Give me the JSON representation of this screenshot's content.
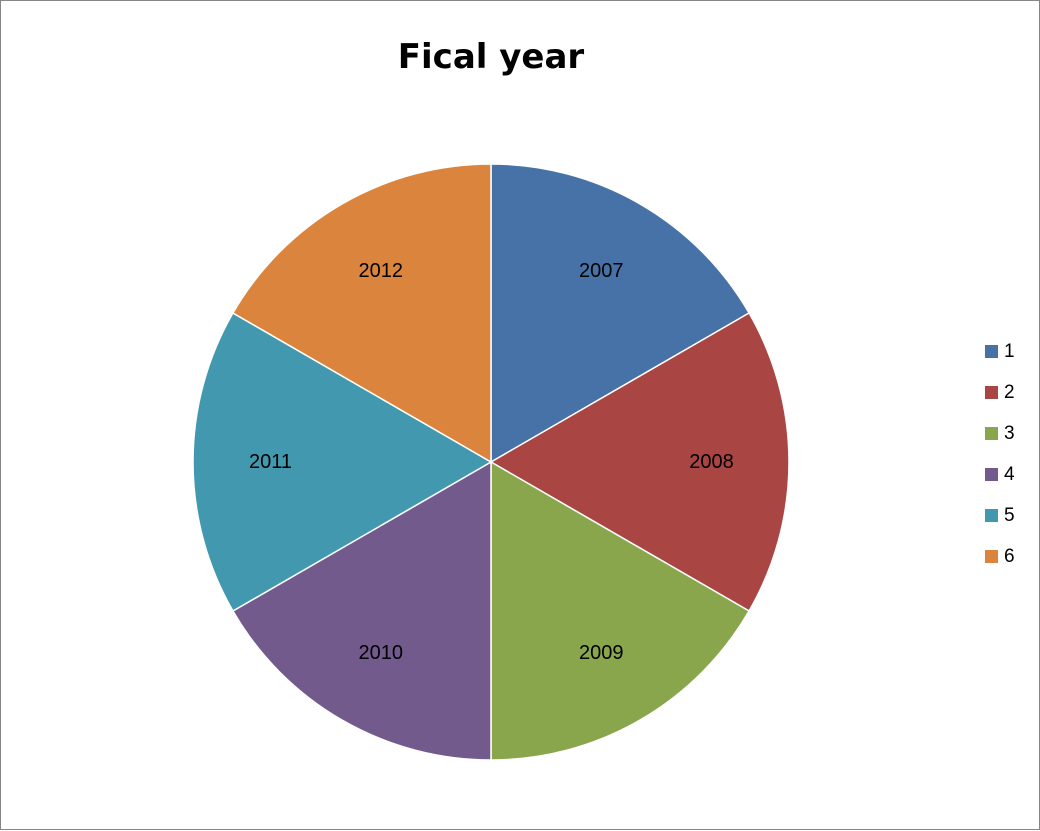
{
  "chart_data": {
    "type": "pie",
    "title": "Fical year",
    "categories": [
      "1",
      "2",
      "3",
      "4",
      "5",
      "6"
    ],
    "slice_labels": [
      "2007",
      "2008",
      "2009",
      "2010",
      "2011",
      "2012"
    ],
    "values": [
      1,
      1,
      1,
      1,
      1,
      1
    ],
    "colors": [
      "#4672A7",
      "#A94543",
      "#8AA64D",
      "#725A8D",
      "#4299AF",
      "#DB843D"
    ],
    "legend_position": "right",
    "start_angle_deg": 0,
    "direction": "clockwise"
  }
}
